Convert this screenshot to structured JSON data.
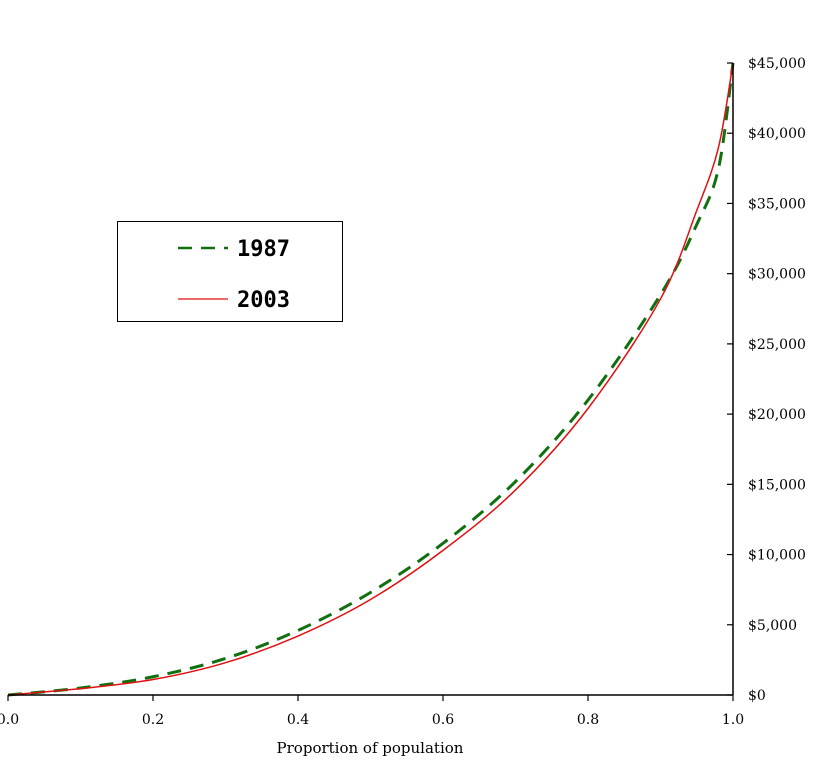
{
  "chart_data": {
    "type": "line",
    "title": "",
    "xlabel": "Proportion of population",
    "ylabel": "",
    "xlim": [
      0,
      1
    ],
    "ylim": [
      0,
      45000
    ],
    "x_ticks": [
      "0.0",
      "0.2",
      "0.4",
      "0.6",
      "0.8",
      "1.0"
    ],
    "y_ticks": [
      "$0",
      "$5,000",
      "$10,000",
      "$15,000",
      "$20,000",
      "$25,000",
      "$30,000",
      "$35,000",
      "$40,000",
      "$45,000"
    ],
    "y_axis_side": "right",
    "grid": false,
    "legend_position": "upper-left",
    "series": [
      {
        "name": "1987",
        "color": "#107010",
        "style": "dashed",
        "x": [
          0.0,
          0.1,
          0.2,
          0.3,
          0.4,
          0.5,
          0.6,
          0.7,
          0.8,
          0.9,
          0.95,
          0.98,
          1.0
        ],
        "y": [
          0,
          500,
          1300,
          2600,
          4600,
          7300,
          10800,
          15200,
          21000,
          28500,
          33500,
          37500,
          45000
        ]
      },
      {
        "name": "2003",
        "color": "#e01010",
        "style": "solid",
        "x": [
          0.0,
          0.1,
          0.2,
          0.3,
          0.4,
          0.5,
          0.6,
          0.7,
          0.8,
          0.9,
          0.95,
          0.98,
          1.0
        ],
        "y": [
          0,
          450,
          1100,
          2300,
          4200,
          6800,
          10300,
          14600,
          20400,
          28200,
          34500,
          39000,
          45000
        ]
      }
    ]
  }
}
